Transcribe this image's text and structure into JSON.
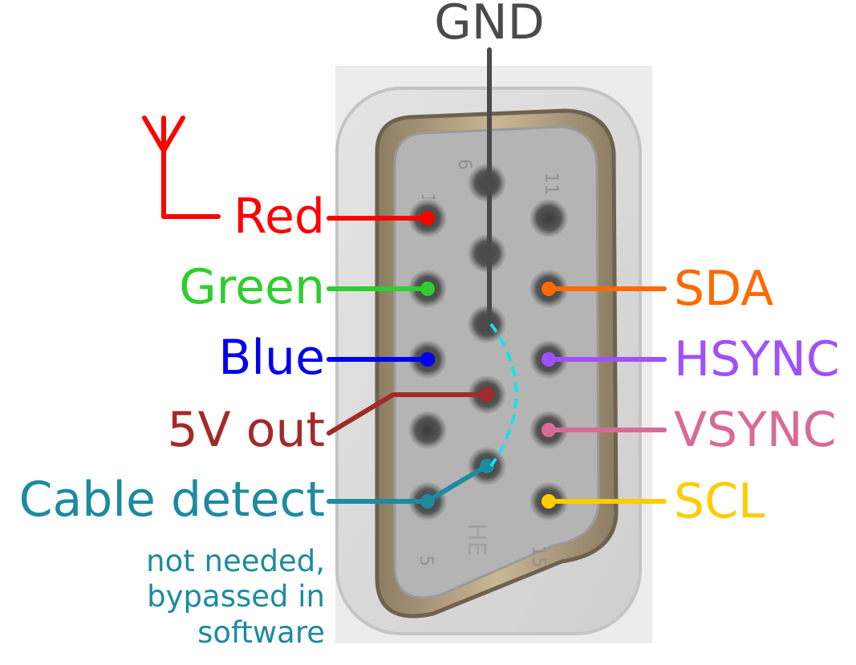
{
  "labels": {
    "gnd": "GND",
    "red": "Red",
    "green": "Green",
    "blue": "Blue",
    "five_v": "5V out",
    "cable_detect": "Cable detect",
    "sda": "SDA",
    "hsync": "HSYNC",
    "vsync": "VSYNC",
    "scl": "SCL"
  },
  "note_lines": [
    "not needed,",
    "bypassed in",
    "software"
  ],
  "connector_markings": {
    "pin1": "1",
    "pin5": "5",
    "pin6": "6",
    "pin11": "11",
    "pin15": "15",
    "maker": "HE"
  },
  "colors": {
    "gnd": "#4a4a4a",
    "red": "#ff0000",
    "green": "#2fcd2f",
    "blue": "#0000ee",
    "five_v": "#a32a2a",
    "cable_detect": "#1d8aa0",
    "cable_dashed": "#19e0f0",
    "sda": "#ff6a00",
    "hsync": "#a050ff",
    "vsync": "#d86a96",
    "scl": "#ffcc00"
  },
  "icons": {
    "antenna": "antenna-icon"
  }
}
